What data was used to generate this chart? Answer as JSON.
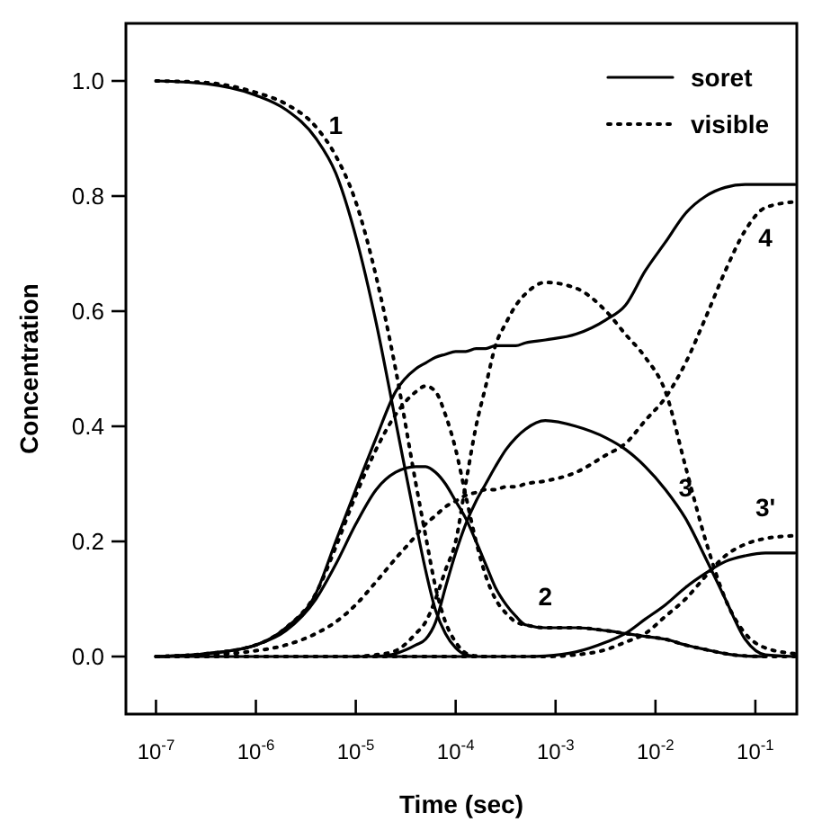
{
  "chart_data": {
    "type": "line",
    "xlabel": "Time (sec)",
    "ylabel": "Concentration",
    "log": "x",
    "legend": "top right",
    "grid": false,
    "xlim": [
      5e-08,
      0.26
    ],
    "ylim": [
      -0.1,
      1.1
    ],
    "xticks": [
      {
        "value": 1e-07,
        "label": "10$^{-7}$"
      },
      {
        "value": 1e-06,
        "label": "10$^{-6}$"
      },
      {
        "value": 1e-05,
        "label": "10$^{-5}$"
      },
      {
        "value": 0.0001,
        "label": "10$^{-4}$"
      },
      {
        "value": 0.001,
        "label": "10$^{-3}$"
      },
      {
        "value": 0.01,
        "label": "10$^{-2}$"
      },
      {
        "value": 0.1,
        "label": "10$^{-1}$"
      }
    ],
    "yticks": [
      {
        "value": 0,
        "label": "0.0"
      },
      {
        "value": 0.2,
        "label": "0.2"
      },
      {
        "value": 0.4,
        "label": "0.4"
      },
      {
        "value": 0.6,
        "label": "0.6"
      },
      {
        "value": 0.8,
        "label": "0.8"
      },
      {
        "value": 1,
        "label": "1.0"
      }
    ],
    "x": [
      1e-07,
      3.2e-07,
      1e-06,
      2e-06,
      4e-06,
      6.3e-06,
      1e-05,
      1.6e-05,
      2.5e-05,
      4e-05,
      5e-05,
      6.3e-05,
      7.9e-05,
      0.0001,
      0.000126,
      0.00016,
      0.0002,
      0.00025,
      0.00032,
      0.0004,
      0.0005,
      0.00079,
      0.0016,
      0.0032,
      0.005,
      0.0079,
      0.0126,
      0.02,
      0.032,
      0.05,
      0.079,
      0.126,
      0.25
    ],
    "series": [
      {
        "name": "soret",
        "color": "#000000",
        "line_style": "solid",
        "values": [
          1.0,
          0.995,
          0.975,
          0.95,
          0.9,
          0.84,
          0.73,
          0.58,
          0.41,
          0.23,
          0.15,
          0.08,
          0.04,
          0.015,
          0.003,
          0,
          null,
          null,
          null,
          null,
          null,
          null,
          null,
          null,
          null,
          null,
          null,
          null,
          null,
          null,
          null,
          null,
          null
        ]
      },
      {
        "name": "visible",
        "color": "#000000",
        "line_style": "dotted",
        "values": [
          1.0,
          0.997,
          0.98,
          0.96,
          0.92,
          0.87,
          0.79,
          0.66,
          0.5,
          0.3,
          0.21,
          0.12,
          0.06,
          0.025,
          0.006,
          0.001,
          0,
          null,
          null,
          null,
          null,
          null,
          null,
          null,
          null,
          null,
          null,
          null,
          null,
          null,
          null,
          null,
          null
        ]
      },
      {
        "color": "#000000",
        "line_style": "solid",
        "values": [
          0,
          0.005,
          0.02,
          0.045,
          0.1,
          0.16,
          0.23,
          0.29,
          0.32,
          0.33,
          0.33,
          0.32,
          0.3,
          0.27,
          0.24,
          0.2,
          0.16,
          0.12,
          0.09,
          0.07,
          0.055,
          0.05,
          0.05,
          0.045,
          0.04,
          0.035,
          0.03,
          0.02,
          0.012,
          0.005,
          0.001,
          0,
          null
        ]
      },
      {
        "color": "#000000",
        "line_style": "dotted",
        "values": [
          0,
          0.005,
          0.02,
          0.05,
          0.11,
          0.19,
          0.28,
          0.36,
          0.42,
          0.46,
          0.47,
          0.46,
          0.42,
          0.36,
          0.28,
          0.2,
          0.14,
          0.1,
          0.075,
          0.06,
          0.055,
          0.05,
          0.05,
          0.045,
          0.04,
          0.035,
          0.03,
          0.02,
          0.012,
          0.005,
          0.001,
          0,
          0
        ]
      },
      {
        "color": "#000000",
        "line_style": "solid",
        "values": [
          null,
          null,
          null,
          null,
          null,
          null,
          null,
          0,
          0.005,
          0.02,
          0.03,
          0.06,
          0.12,
          0.18,
          0.23,
          0.27,
          0.3,
          0.33,
          0.36,
          0.38,
          0.395,
          0.41,
          0.4,
          0.38,
          0.36,
          0.33,
          0.29,
          0.24,
          0.17,
          0.1,
          0.03,
          0.003,
          0
        ]
      },
      {
        "color": "#000000",
        "line_style": "dotted",
        "values": [
          null,
          null,
          null,
          null,
          null,
          null,
          0,
          0.003,
          0.01,
          0.04,
          0.06,
          0.1,
          0.15,
          0.2,
          0.3,
          0.4,
          0.47,
          0.54,
          0.58,
          0.61,
          0.63,
          0.65,
          0.64,
          0.6,
          0.56,
          0.52,
          0.46,
          0.33,
          0.2,
          0.1,
          0.04,
          0.015,
          0.005
        ]
      },
      {
        "color": "#000000",
        "line_style": "solid",
        "values": [
          0,
          0,
          0,
          0,
          0,
          0,
          0,
          0,
          0,
          0,
          0,
          0,
          0,
          0,
          0,
          0,
          0,
          0,
          0,
          0,
          0,
          0.001,
          0.008,
          0.025,
          0.04,
          0.065,
          0.09,
          0.12,
          0.145,
          0.165,
          0.175,
          0.18,
          0.18
        ]
      },
      {
        "color": "#000000",
        "line_style": "dotted",
        "values": [
          0,
          0,
          0,
          0,
          0,
          0,
          0,
          0,
          0,
          0,
          0,
          0,
          0,
          0,
          0,
          0,
          0,
          0,
          0,
          0,
          0,
          0,
          0.003,
          0.012,
          0.025,
          0.04,
          0.07,
          0.1,
          0.14,
          0.175,
          0.195,
          0.205,
          0.21
        ]
      },
      {
        "color": "#000000",
        "line_style": "solid",
        "values": [
          0,
          0.005,
          0.02,
          0.05,
          0.11,
          0.2,
          0.29,
          0.38,
          0.46,
          0.5,
          0.51,
          0.52,
          0.525,
          0.53,
          0.53,
          0.535,
          0.535,
          0.54,
          0.54,
          0.54,
          0.545,
          0.55,
          0.56,
          0.585,
          0.61,
          0.67,
          0.72,
          0.77,
          0.8,
          0.815,
          0.82,
          0.82,
          0.82
        ]
      },
      {
        "color": "#000000",
        "line_style": "dotted",
        "values": [
          0,
          0.003,
          0.01,
          0.02,
          0.04,
          0.06,
          0.09,
          0.13,
          0.17,
          0.21,
          0.23,
          0.245,
          0.26,
          0.27,
          0.28,
          0.285,
          0.29,
          0.29,
          0.295,
          0.295,
          0.3,
          0.305,
          0.32,
          0.35,
          0.37,
          0.41,
          0.45,
          0.51,
          0.59,
          0.67,
          0.74,
          0.78,
          0.79
        ]
      }
    ],
    "annotations": [
      {
        "text": "1",
        "x": 6.3e-06,
        "y": 0.87
      },
      {
        "text": "2",
        "x": 0.00079,
        "y": 0.05
      },
      {
        "text": "3",
        "x": 0.02,
        "y": 0.24
      },
      {
        "text": "3'",
        "x": 0.126,
        "y": 0.205
      },
      {
        "text": "4",
        "x": 0.126,
        "y": 0.78
      }
    ]
  }
}
